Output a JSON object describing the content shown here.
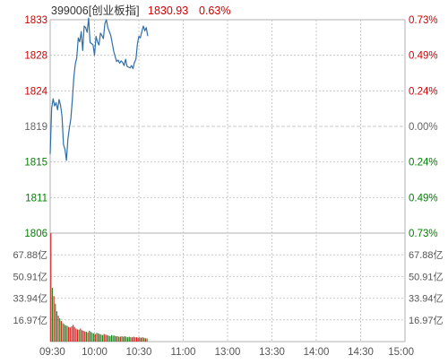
{
  "chart_data": {
    "type": "line",
    "header": {
      "code_name": "399006[创业板指]",
      "last_price": "1830.93",
      "change_pct": "0.63%"
    },
    "price_axis": {
      "left_ticks": [
        "1833",
        "1828",
        "1824",
        "1819",
        "1815",
        "1811",
        "1806"
      ],
      "right_ticks": [
        "0.73%",
        "0.49%",
        "0.24%",
        "0.00%",
        "0.24%",
        "0.49%",
        "0.73%"
      ],
      "ylim": [
        1806,
        1833
      ],
      "base_value": 1819
    },
    "volume_axis": {
      "left_ticks": [
        "67.88亿",
        "50.91亿",
        "33.94亿",
        "16.97亿"
      ],
      "right_ticks": [
        "67.88亿",
        "50.91亿",
        "33.94亿",
        "16.97亿"
      ],
      "ylim": [
        0,
        84.85
      ]
    },
    "time_axis": {
      "labels": [
        "09:30",
        "10:00",
        "10:30",
        "11:00",
        "13:00",
        "13:30",
        "14:00",
        "14:30",
        "15:00"
      ],
      "session_minutes": 240
    },
    "series": [
      {
        "key": "price",
        "x": [
          0,
          1,
          2,
          3,
          4,
          5,
          6,
          7,
          8,
          9,
          10,
          11,
          12,
          13,
          14,
          15,
          16,
          17,
          18,
          19,
          20,
          21,
          22,
          23,
          24,
          25,
          26,
          27,
          28,
          29,
          30,
          31,
          32,
          33,
          34,
          35,
          36,
          37,
          38,
          39,
          40,
          41,
          42,
          43,
          44,
          45,
          46,
          47,
          48,
          49,
          50,
          51,
          52,
          53,
          54,
          55,
          56,
          57,
          58,
          59,
          60,
          61,
          62,
          63,
          64,
          65,
          66
        ],
        "values": [
          1816.0,
          1821.8,
          1823.0,
          1822.1,
          1822.5,
          1821.6,
          1822.9,
          1822.2,
          1820.8,
          1817.2,
          1816.6,
          1815.2,
          1817.9,
          1819.3,
          1820.5,
          1822.9,
          1825.7,
          1827.4,
          1828.2,
          1830.7,
          1830.2,
          1831.5,
          1829.1,
          1832.2,
          1832.0,
          1831.4,
          1833.2,
          1830.1,
          1830.0,
          1829.8,
          1828.5,
          1830.9,
          1830.2,
          1829.8,
          1831.3,
          1831.0,
          1830.6,
          1832.5,
          1833.0,
          1832.0,
          1831.5,
          1831.0,
          1830.0,
          1829.0,
          1828.3,
          1827.7,
          1827.9,
          1827.5,
          1827.8,
          1827.6,
          1827.2,
          1828.0,
          1827.1,
          1827.0,
          1826.9,
          1827.2,
          1826.8,
          1827.6,
          1828.0,
          1829.9,
          1830.9,
          1830.7,
          1831.5,
          1832.2,
          1831.6,
          1832.0,
          1830.93
        ]
      },
      {
        "key": "volume",
        "values": [
          84.8,
          42.0,
          35.6,
          29.6,
          23.7,
          20.3,
          18.2,
          16.1,
          14.4,
          13.6,
          12.7,
          12.3,
          11.5,
          11.0,
          11.9,
          13.1,
          11.5,
          10.2,
          9.5,
          9.3,
          10.2,
          8.9,
          8.5,
          7.9,
          7.6,
          7.2,
          8.5,
          7.6,
          6.8,
          6.4,
          5.9,
          6.8,
          6.4,
          5.9,
          5.5,
          5.1,
          5.9,
          5.5,
          5.1,
          4.7,
          4.2,
          5.1,
          4.7,
          4.7,
          4.2,
          4.2,
          3.8,
          3.8,
          4.2,
          3.8,
          4.2,
          3.8,
          3.4,
          3.8,
          3.4,
          3.4,
          3.8,
          3.4,
          3.4,
          3.0,
          3.4,
          3.0,
          3.4,
          3.0,
          2.5,
          2.5
        ],
        "directions": [
          "u",
          "d",
          "u",
          "d",
          "d",
          "u",
          "d",
          "u",
          "d",
          "d",
          "u",
          "d",
          "u",
          "u",
          "u",
          "u",
          "u",
          "u",
          "u",
          "d",
          "u",
          "d",
          "u",
          "u",
          "d",
          "u",
          "d",
          "d",
          "d",
          "d",
          "u",
          "d",
          "d",
          "u",
          "d",
          "d",
          "u",
          "u",
          "d",
          "d",
          "d",
          "d",
          "d",
          "d",
          "d",
          "u",
          "d",
          "u",
          "d",
          "d",
          "u",
          "d",
          "d",
          "d",
          "u",
          "d",
          "u",
          "u",
          "u",
          "u",
          "d",
          "u",
          "u",
          "d",
          "u",
          "d"
        ]
      }
    ],
    "colors": {
      "price_line": "#2f6fa8",
      "up": "#cc0000",
      "down": "#008000",
      "neutral": "#666666",
      "grid": "#c8c8c8",
      "frame": "#b0b0b0",
      "volume_up": "#e02020",
      "volume_down": "#1f8a1f"
    }
  }
}
